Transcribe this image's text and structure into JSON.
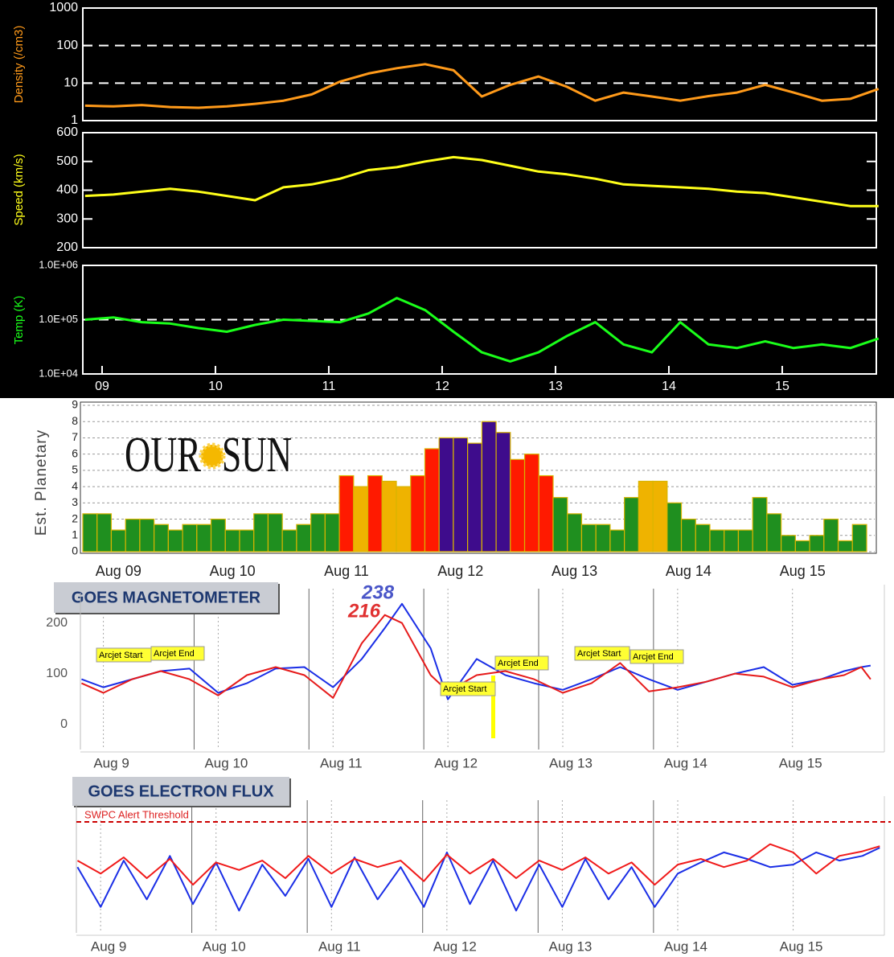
{
  "chart_data": [
    {
      "type": "line",
      "ylabel": "Density (/cm3)",
      "color": "#ff9a1a",
      "log": true,
      "grid": "dashed",
      "xlim": [
        8.83,
        15.83
      ],
      "ylim": [
        1,
        1000
      ],
      "yticks": [
        1,
        10,
        100,
        1000
      ],
      "x": [
        8.85,
        9.1,
        9.35,
        9.6,
        9.85,
        10.1,
        10.35,
        10.6,
        10.85,
        11.1,
        11.35,
        11.6,
        11.85,
        12.1,
        12.35,
        12.6,
        12.85,
        13.1,
        13.35,
        13.6,
        13.85,
        14.1,
        14.35,
        14.6,
        14.85,
        15.1,
        15.35,
        15.6,
        15.85
      ],
      "values": [
        2.5,
        2.4,
        2.6,
        2.3,
        2.2,
        2.4,
        2.8,
        3.4,
        5,
        11,
        18,
        25,
        32,
        22,
        4.4,
        9,
        15,
        8,
        3.4,
        5.6,
        4.4,
        3.4,
        4.5,
        5.6,
        9,
        5.6,
        3.4,
        3.8,
        7
      ]
    },
    {
      "type": "line",
      "ylabel": "Speed (km/s)",
      "color": "#ffff1a",
      "log": false,
      "grid": false,
      "xlim": [
        8.83,
        15.83
      ],
      "ylim": [
        200,
        600
      ],
      "yticks": [
        200,
        300,
        400,
        500,
        600
      ],
      "x": [
        8.85,
        9.1,
        9.35,
        9.6,
        9.85,
        10.1,
        10.35,
        10.6,
        10.85,
        11.1,
        11.35,
        11.6,
        11.85,
        12.1,
        12.35,
        12.6,
        12.85,
        13.1,
        13.35,
        13.6,
        13.85,
        14.1,
        14.35,
        14.6,
        14.85,
        15.1,
        15.35,
        15.6,
        15.85
      ],
      "values": [
        380,
        385,
        395,
        405,
        395,
        380,
        365,
        410,
        420,
        440,
        470,
        480,
        500,
        515,
        505,
        485,
        465,
        455,
        440,
        420,
        415,
        410,
        405,
        395,
        390,
        375,
        360,
        345,
        345
      ]
    },
    {
      "type": "line",
      "ylabel": "Temp (K)",
      "color": "#1aff1a",
      "log": true,
      "grid": "dashed",
      "xlim": [
        8.83,
        15.83
      ],
      "ylim": [
        10000,
        1000000
      ],
      "yticks": [
        {
          "value": 10000,
          "label": "1.0E+04"
        },
        {
          "value": 100000,
          "label": "1.0E+05"
        },
        {
          "value": 1000000,
          "label": "1.0E+06"
        }
      ],
      "xticks": [
        {
          "value": 9,
          "label": "09"
        },
        10,
        11,
        12,
        13,
        14,
        15
      ],
      "x": [
        8.85,
        9.1,
        9.35,
        9.6,
        9.85,
        10.1,
        10.35,
        10.6,
        10.85,
        11.1,
        11.35,
        11.6,
        11.85,
        12.1,
        12.35,
        12.6,
        12.85,
        13.1,
        13.35,
        13.6,
        13.85,
        14.1,
        14.35,
        14.6,
        14.85,
        15.1,
        15.35,
        15.6,
        15.85
      ],
      "values": [
        100000,
        110000,
        90000,
        85000,
        70000,
        60000,
        80000,
        100000,
        95000,
        90000,
        130000,
        250000,
        150000,
        60000,
        25000,
        17000,
        25000,
        50000,
        90000,
        35000,
        25000,
        90000,
        35000,
        30000,
        40000,
        30000,
        35000,
        30000,
        45000
      ]
    },
    {
      "type": "bar",
      "ylabel": "Est. Planetary",
      "logo_left": "OUR",
      "logo_right": "SUN",
      "grid": "dashed",
      "ylim": [
        0,
        9
      ],
      "yticks": [
        0,
        1,
        2,
        3,
        4,
        5,
        6,
        7,
        8,
        9
      ],
      "categories": [
        null,
        null,
        "Aug 09",
        null,
        null,
        null,
        null,
        null,
        null,
        null,
        "Aug 10",
        null,
        null,
        null,
        null,
        null,
        null,
        null,
        "Aug 11",
        null,
        null,
        null,
        null,
        null,
        null,
        null,
        "Aug 12",
        null,
        null,
        null,
        null,
        null,
        null,
        null,
        "Aug 13",
        null,
        null,
        null,
        null,
        null,
        null,
        null,
        "Aug 14",
        null,
        null,
        null,
        null,
        null,
        null,
        null,
        "Aug 15",
        null,
        null,
        null,
        null
      ],
      "values": [
        2.33,
        2.33,
        1.33,
        2,
        2,
        1.67,
        1.33,
        1.67,
        1.67,
        2,
        1.33,
        1.33,
        2.33,
        2.33,
        1.33,
        1.67,
        2.33,
        2.33,
        4.67,
        4,
        4.67,
        4.33,
        4,
        4.67,
        6.33,
        7,
        7,
        6.67,
        8,
        7.33,
        5.67,
        6,
        4.67,
        3.33,
        2.33,
        1.67,
        1.67,
        1.33,
        3.33,
        4.33,
        4.33,
        3,
        2,
        1.67,
        1.33,
        1.33,
        1.33,
        3.33,
        2.33,
        1,
        0.67,
        1,
        2,
        0.67,
        1.67
      ],
      "colors": [
        "#1f8f1f",
        "#1f8f1f",
        "#1f8f1f",
        "#1f8f1f",
        "#1f8f1f",
        "#1f8f1f",
        "#1f8f1f",
        "#1f8f1f",
        "#1f8f1f",
        "#1f8f1f",
        "#1f8f1f",
        "#1f8f1f",
        "#1f8f1f",
        "#1f8f1f",
        "#1f8f1f",
        "#1f8f1f",
        "#1f8f1f",
        "#1f8f1f",
        "#ff1a00",
        "#efb300",
        "#ff1a00",
        "#efb300",
        "#efb300",
        "#ff1a00",
        "#ff1a00",
        "#3e0c8c",
        "#3e0c8c",
        "#3e0c8c",
        "#3e0c8c",
        "#3e0c8c",
        "#ff1a00",
        "#ff1a00",
        "#ff1a00",
        "#1f8f1f",
        "#1f8f1f",
        "#1f8f1f",
        "#1f8f1f",
        "#1f8f1f",
        "#1f8f1f",
        "#efb300",
        "#efb300",
        "#1f8f1f",
        "#1f8f1f",
        "#1f8f1f",
        "#1f8f1f",
        "#1f8f1f",
        "#1f8f1f",
        "#1f8f1f",
        "#1f8f1f",
        "#1f8f1f",
        "#1f8f1f",
        "#1f8f1f",
        "#1f8f1f",
        "#1f8f1f",
        "#1f8f1f"
      ]
    },
    {
      "type": "line",
      "title": "GOES MAGNETOMETER",
      "log": false,
      "xlim": [
        8.8,
        15.8
      ],
      "ylim": [
        -50,
        260
      ],
      "yticks": [
        0,
        100,
        200
      ],
      "xticks": [
        {
          "value": 9,
          "label": "Aug 9"
        },
        {
          "value": 10,
          "label": "Aug 10"
        },
        {
          "value": 11,
          "label": "Aug 11"
        },
        {
          "value": 12,
          "label": "Aug 12"
        },
        {
          "value": 13,
          "label": "Aug 13"
        },
        {
          "value": 14,
          "label": "Aug 14"
        },
        {
          "value": 15,
          "label": "Aug 15"
        }
      ],
      "annotations": [
        "Arcjet Start",
        "Arcjet End",
        "Arcjet Start",
        "Arcjet End",
        "Arcjet Start",
        "Arcjet End"
      ],
      "x": [
        8.81,
        9,
        9.25,
        9.5,
        9.75,
        10,
        10.25,
        10.5,
        10.75,
        11,
        11.25,
        11.45,
        11.6,
        11.85,
        12,
        12.25,
        12.5,
        12.75,
        13,
        13.25,
        13.5,
        13.75,
        14,
        14.25,
        14.5,
        14.75,
        15,
        15.25,
        15.45,
        15.6,
        15.68
      ],
      "series": [
        {
          "color": "#1a2ee6",
          "values": [
            89,
            73,
            89,
            105,
            110,
            62,
            81,
            110,
            113,
            73,
            129,
            190,
            238,
            150,
            49,
            129,
            97,
            81,
            68,
            89,
            113,
            89,
            68,
            84,
            100,
            113,
            78,
            89,
            105,
            113,
            116
          ]
        },
        {
          "color": "#e61a1a",
          "values": [
            81,
            62,
            89,
            105,
            89,
            57,
            97,
            113,
            97,
            52,
            160,
            216,
            200,
            97,
            65,
            97,
            105,
            89,
            62,
            81,
            121,
            65,
            73,
            84,
            100,
            94,
            73,
            89,
            97,
            113,
            89
          ]
        }
      ]
    },
    {
      "type": "line",
      "title": "GOES ELECTRON FLUX",
      "log": true,
      "threshold": 1000,
      "threshold_label": "SWPC Alert Threshold",
      "xlim": [
        8.79,
        15.79
      ],
      "ylim": [
        1,
        3000
      ],
      "xticks": [
        {
          "value": 9,
          "label": "Aug 9"
        },
        {
          "value": 10,
          "label": "Aug 10"
        },
        {
          "value": 11,
          "label": "Aug 11"
        },
        {
          "value": 12,
          "label": "Aug 12"
        },
        {
          "value": 13,
          "label": "Aug 13"
        },
        {
          "value": 14,
          "label": "Aug 14"
        },
        {
          "value": 15,
          "label": "Aug 15"
        }
      ],
      "x": [
        8.8,
        9,
        9.2,
        9.4,
        9.6,
        9.8,
        10,
        10.2,
        10.4,
        10.6,
        10.8,
        11,
        11.2,
        11.4,
        11.6,
        11.8,
        12,
        12.2,
        12.4,
        12.6,
        12.8,
        13,
        13.2,
        13.4,
        13.6,
        13.8,
        14,
        14.2,
        14.4,
        14.6,
        14.8,
        15,
        15.2,
        15.4,
        15.6,
        15.75
      ],
      "series": [
        {
          "color": "#1a2ee6",
          "values": [
            60,
            5,
            90,
            8,
            120,
            6,
            80,
            4,
            70,
            10,
            100,
            5,
            110,
            8,
            60,
            5,
            150,
            6,
            90,
            4,
            70,
            5,
            100,
            8,
            60,
            5,
            40,
            80,
            150,
            100,
            60,
            70,
            150,
            90,
            120,
            200
          ]
        },
        {
          "color": "#f01a1a",
          "values": [
            90,
            40,
            110,
            30,
            100,
            20,
            80,
            50,
            90,
            30,
            120,
            40,
            100,
            60,
            90,
            25,
            130,
            40,
            100,
            30,
            90,
            50,
            110,
            40,
            80,
            20,
            70,
            100,
            60,
            90,
            250,
            150,
            40,
            120,
            160,
            220
          ]
        }
      ]
    }
  ]
}
